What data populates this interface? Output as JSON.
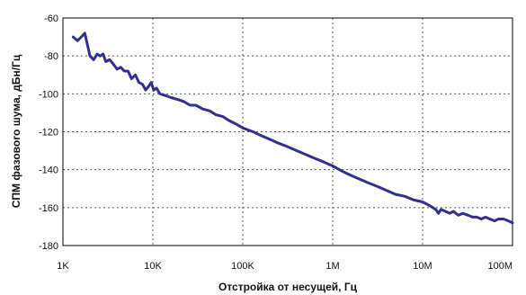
{
  "chart_data": {
    "type": "line",
    "title": "",
    "xlabel": "Отстройка от несущей, Гц",
    "ylabel": "СПМ фазового шума, дБн/Гц",
    "x_scale": "log",
    "xlim": [
      1000,
      100000000
    ],
    "ylim": [
      -180,
      -60
    ],
    "x_ticks": [
      {
        "value": 1000,
        "label": "1K"
      },
      {
        "value": 10000,
        "label": "10K"
      },
      {
        "value": 100000,
        "label": "100K"
      },
      {
        "value": 1000000,
        "label": "1M"
      },
      {
        "value": 10000000,
        "label": "10M"
      },
      {
        "value": 100000000,
        "label": "100M"
      }
    ],
    "y_ticks": [
      -60,
      -80,
      -100,
      -120,
      -140,
      -160,
      -180
    ],
    "grid": true,
    "line_color": "#2e3192",
    "series": [
      {
        "x": [
          1300,
          1450,
          1600,
          1750,
          1850,
          2000,
          2200,
          2400,
          2600,
          2800,
          3000,
          3300,
          3600,
          4000,
          4400,
          4800,
          5300,
          5800,
          6400,
          7000,
          7700,
          8300,
          9000,
          9600,
          10200,
          11000,
          12000,
          14000,
          16000,
          19000,
          22000,
          26000,
          30000,
          36000,
          43000,
          50000,
          60000,
          70000,
          85000,
          100000,
          130000,
          160000,
          200000,
          250000,
          320000,
          400000,
          500000,
          630000,
          800000,
          1000000,
          1300000,
          1600000,
          2000000,
          2500000,
          3200000,
          4000000,
          5000000,
          6300000,
          8000000,
          10000000,
          12000000,
          14000000,
          15000000,
          16000000,
          18000000,
          20000000,
          22000000,
          25000000,
          28000000,
          32000000,
          36000000,
          40000000,
          45000000,
          50000000,
          56000000,
          63000000,
          70000000,
          80000000,
          90000000,
          100000000
        ],
        "values": [
          -70,
          -72,
          -70,
          -68,
          -73,
          -80,
          -82,
          -79,
          -80,
          -79,
          -83,
          -82,
          -84,
          -87,
          -86,
          -88,
          -88,
          -92,
          -90,
          -94,
          -95,
          -98,
          -96,
          -94,
          -98,
          -97,
          -100,
          -101,
          -102,
          -103,
          -104,
          -106,
          -106,
          -108,
          -109,
          -111,
          -112,
          -114,
          -116,
          -118,
          -120,
          -122,
          -124,
          -126,
          -128,
          -130,
          -132,
          -134,
          -136,
          -138,
          -141,
          -143,
          -145,
          -147,
          -149,
          -151,
          -153,
          -154,
          -156,
          -157,
          -159,
          -161,
          -163,
          -161,
          -162,
          -163,
          -162,
          -164,
          -163,
          -164,
          -165,
          -165,
          -166,
          -165,
          -166,
          -167,
          -166,
          -166,
          -167,
          -168
        ]
      }
    ]
  }
}
